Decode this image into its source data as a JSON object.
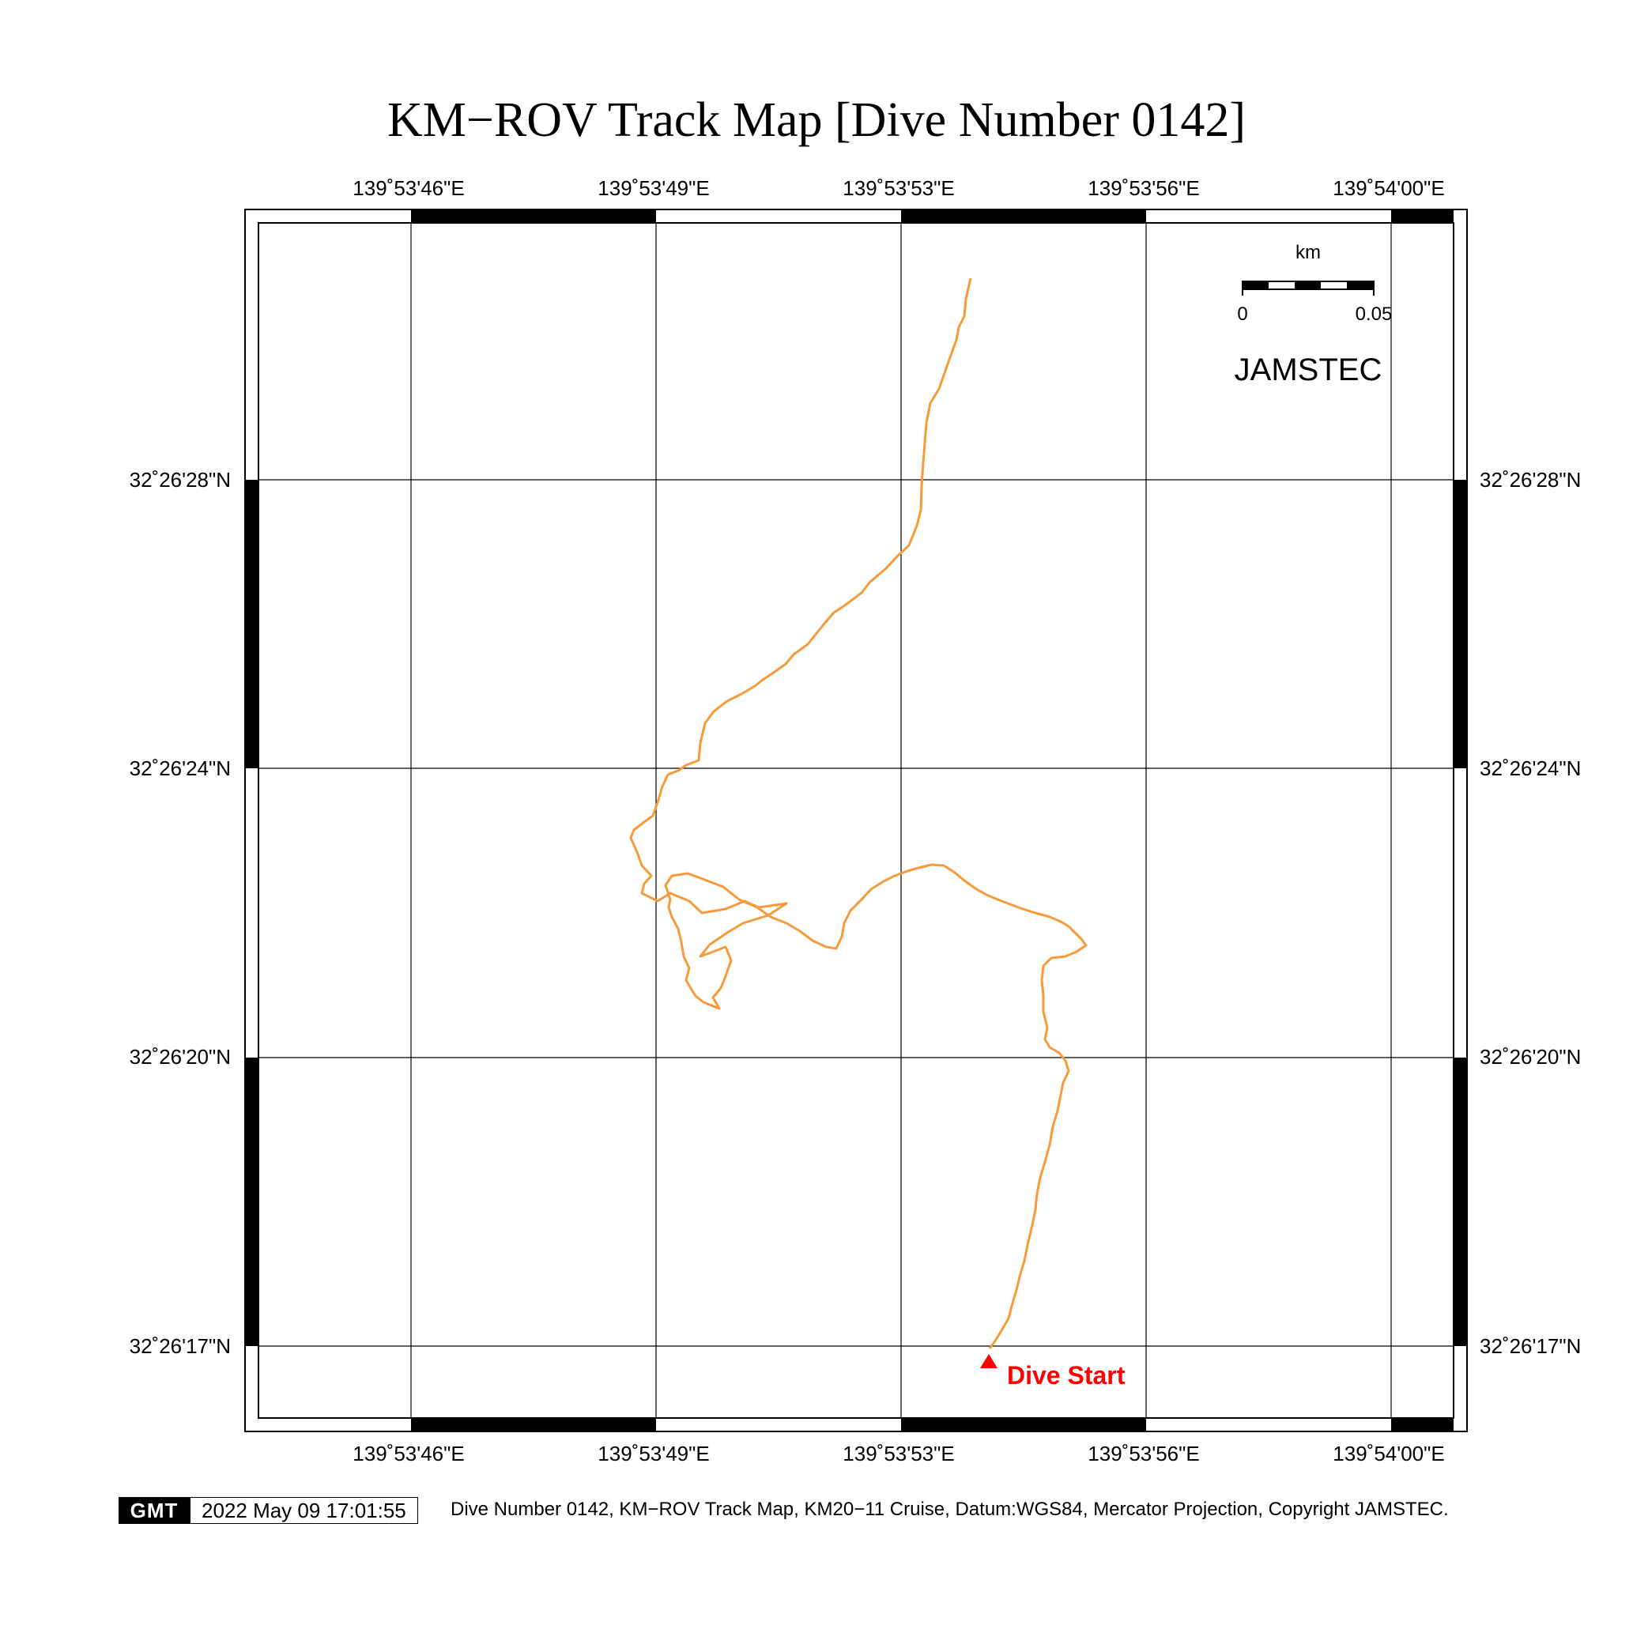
{
  "title": "KM−ROV Track Map [Dive Number 0142]",
  "longitude_labels": [
    "139˚53'46\"E",
    "139˚53'49\"E",
    "139˚53'53\"E",
    "139˚53'56\"E",
    "139˚54'00\"E"
  ],
  "latitude_labels": [
    "32˚26'28\"N",
    "32˚26'24\"N",
    "32˚26'20\"N",
    "32˚26'17\"N"
  ],
  "scale_bar": {
    "unit": "km",
    "start_label": "0",
    "end_label": "0.05"
  },
  "organization": "JAMSTEC",
  "start_marker": {
    "label": "Dive Start",
    "color": "#ff0000"
  },
  "track_color": "#f79a3a",
  "footer": {
    "logo_text": "GMT",
    "timestamp": "2022 May 09 17:01:55",
    "caption": "Dive Number 0142, KM−ROV Track Map, KM20−11 Cruise, Datum:WGS84, Mercator Projection, Copyright JAMSTEC."
  }
}
